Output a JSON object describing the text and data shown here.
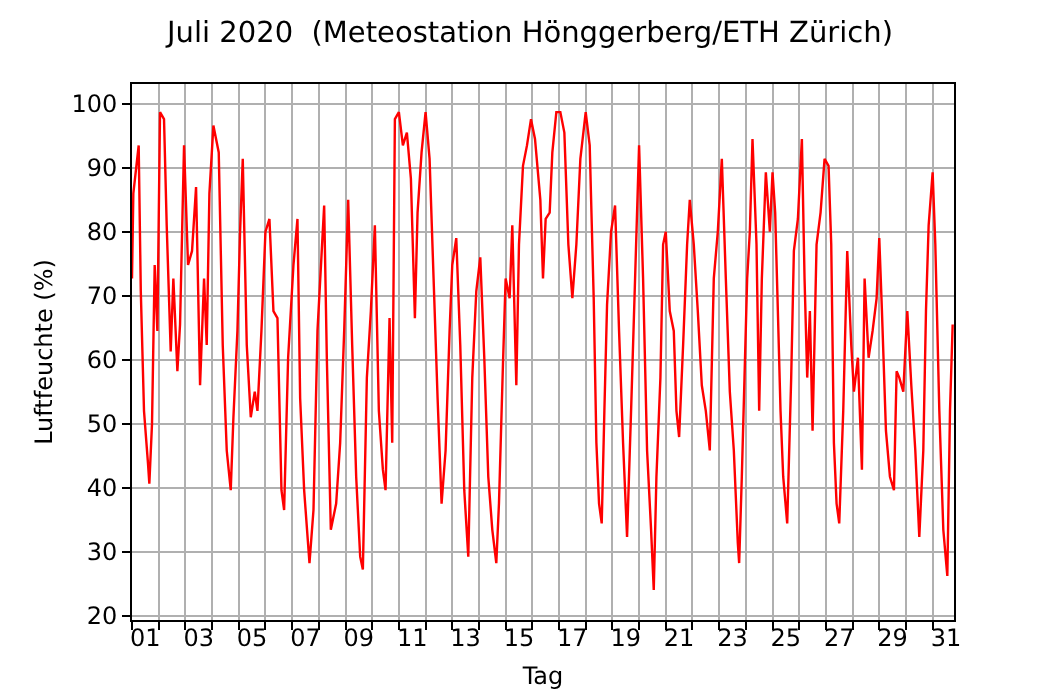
{
  "chart_data": {
    "type": "line",
    "title": "Juli 2020  (Meteostation Hönggerberg/ETH Zürich)",
    "xlabel": "Tag",
    "ylabel": "Luftfeuchte (%)",
    "xlim": [
      1,
      31.8
    ],
    "xticks": [
      {
        "value": 1,
        "label": null
      },
      {
        "value": 2,
        "label": null
      },
      {
        "value": 3,
        "label": null
      },
      {
        "value": 4,
        "label": null
      },
      {
        "value": 5,
        "label": null
      },
      {
        "value": 6,
        "label": null
      },
      {
        "value": 7,
        "label": null
      },
      {
        "value": 8,
        "label": null
      },
      {
        "value": 9,
        "label": null
      },
      {
        "value": 10,
        "label": null
      },
      {
        "value": 11,
        "label": null
      },
      {
        "value": 12,
        "label": null
      },
      {
        "value": 13,
        "label": null
      },
      {
        "value": 14,
        "label": null
      },
      {
        "value": 15,
        "label": null
      },
      {
        "value": 16,
        "label": null
      },
      {
        "value": 17,
        "label": null
      },
      {
        "value": 18,
        "label": null
      },
      {
        "value": 19,
        "label": null
      },
      {
        "value": 20,
        "label": null
      },
      {
        "value": 21,
        "label": null
      },
      {
        "value": 22,
        "label": null
      },
      {
        "value": 23,
        "label": null
      },
      {
        "value": 24,
        "label": null
      },
      {
        "value": 25,
        "label": null
      },
      {
        "value": 26,
        "label": null
      },
      {
        "value": 27,
        "label": null
      },
      {
        "value": 28,
        "label": null
      },
      {
        "value": 29,
        "label": null
      },
      {
        "value": 30,
        "label": null
      },
      {
        "value": 31,
        "label": null
      },
      {
        "value": 1.5,
        "label": "01"
      },
      {
        "value": 3.5,
        "label": "03"
      },
      {
        "value": 5.5,
        "label": "05"
      },
      {
        "value": 7.5,
        "label": "07"
      },
      {
        "value": 9.5,
        "label": "09"
      },
      {
        "value": 11.5,
        "label": "11"
      },
      {
        "value": 13.5,
        "label": "13"
      },
      {
        "value": 15.5,
        "label": "15"
      },
      {
        "value": 17.5,
        "label": "17"
      },
      {
        "value": 19.5,
        "label": "19"
      },
      {
        "value": 21.5,
        "label": "21"
      },
      {
        "value": 23.5,
        "label": "23"
      },
      {
        "value": 25.5,
        "label": "25"
      },
      {
        "value": 27.5,
        "label": "27"
      },
      {
        "value": 29.5,
        "label": "29"
      },
      {
        "value": 31.5,
        "label": "31"
      }
    ],
    "ylim": [
      19.3,
      103.1
    ],
    "yticks": [
      20,
      30,
      40,
      50,
      60,
      70,
      80,
      90,
      100
    ],
    "grid": true,
    "marker": "none",
    "line_style": "solid",
    "series": [
      {
        "color": "#ff0000",
        "x": [
          1.0,
          1.05,
          1.25,
          1.33,
          1.45,
          1.6,
          1.65,
          1.75,
          1.85,
          1.95,
          2.05,
          2.2,
          2.3,
          2.45,
          2.55,
          2.7,
          2.8,
          2.95,
          3.1,
          3.25,
          3.4,
          3.55,
          3.7,
          3.8,
          3.9,
          4.05,
          4.25,
          4.4,
          4.55,
          4.7,
          4.8,
          4.95,
          5.05,
          5.15,
          5.3,
          5.45,
          5.6,
          5.7,
          5.85,
          6.0,
          6.15,
          6.3,
          6.45,
          6.6,
          6.7,
          6.85,
          7.05,
          7.2,
          7.3,
          7.45,
          7.65,
          7.8,
          7.95,
          8.2,
          8.3,
          8.45,
          8.65,
          8.8,
          8.95,
          9.1,
          9.25,
          9.4,
          9.55,
          9.65,
          9.8,
          9.95,
          10.1,
          10.25,
          10.4,
          10.5,
          10.65,
          10.75,
          10.85,
          11.0,
          11.15,
          11.3,
          11.45,
          11.6,
          11.7,
          11.85,
          12.0,
          12.15,
          12.3,
          12.45,
          12.6,
          12.75,
          12.9,
          13.0,
          13.15,
          13.3,
          13.45,
          13.6,
          13.75,
          13.9,
          14.05,
          14.2,
          14.35,
          14.5,
          14.65,
          14.75,
          14.9,
          15.0,
          15.15,
          15.25,
          15.4,
          15.5,
          15.65,
          15.8,
          15.95,
          16.1,
          16.3,
          16.4,
          16.5,
          16.65,
          16.75,
          16.9,
          17.05,
          17.2,
          17.35,
          17.5,
          17.65,
          17.8,
          18.0,
          18.15,
          18.3,
          18.4,
          18.5,
          18.6,
          18.7,
          18.8,
          18.95,
          19.1,
          19.25,
          19.4,
          19.55,
          19.7,
          19.85,
          20.0,
          20.15,
          20.3,
          20.45,
          20.55,
          20.65,
          20.8,
          20.9,
          21.0,
          21.15,
          21.3,
          21.4,
          21.5,
          21.65,
          21.8,
          21.9,
          22.05,
          22.2,
          22.35,
          22.5,
          22.65,
          22.8,
          22.95,
          23.1,
          23.25,
          23.4,
          23.55,
          23.7,
          23.75,
          23.85,
          23.95,
          24.05,
          24.15,
          24.25,
          24.4,
          24.5,
          24.6,
          24.75,
          24.9,
          25.0,
          25.1,
          25.2,
          25.3,
          25.4,
          25.55,
          25.7,
          25.8,
          25.95,
          26.1,
          26.2,
          26.3,
          26.4,
          26.5,
          26.65,
          26.8,
          26.95,
          27.1,
          27.2,
          27.3,
          27.4,
          27.5,
          27.65,
          27.8,
          27.95,
          28.05,
          28.2,
          28.35,
          28.45,
          28.6,
          28.75,
          28.9,
          29.0,
          29.1,
          29.25,
          29.4,
          29.55,
          29.65,
          29.75,
          29.9,
          30.05,
          30.2,
          30.35,
          30.5,
          30.65,
          30.75,
          30.85,
          31.0,
          31.1,
          31.25,
          31.4,
          31.55,
          31.65,
          31.75
        ],
        "values": [
          72.7,
          86,
          93.5,
          70.7,
          52,
          43.7,
          40.6,
          50,
          74.8,
          64.5,
          98.7,
          97.6,
          81,
          61.3,
          72.7,
          58.2,
          65.5,
          93.5,
          74.8,
          77,
          87,
          56,
          72.7,
          62.3,
          86,
          96.6,
          92.4,
          62.3,
          45.8,
          39.6,
          51,
          64.5,
          80,
          91.4,
          62.3,
          51,
          55,
          52,
          64.5,
          80,
          82,
          67.6,
          66.5,
          39.6,
          36.5,
          60.3,
          74.8,
          82,
          54,
          39.6,
          28.2,
          36.5,
          64.5,
          84.1,
          60.3,
          33.4,
          37.5,
          47,
          64.5,
          85,
          62.3,
          41.7,
          29.2,
          27.2,
          57.2,
          67.6,
          81,
          52,
          42.8,
          39.6,
          66.5,
          47,
          97.6,
          98.7,
          93.5,
          95.5,
          88.3,
          66.5,
          83,
          92.4,
          98.7,
          91.4,
          72.7,
          54,
          37.5,
          45.8,
          64.5,
          74.8,
          79,
          62.3,
          39.6,
          29.2,
          57.2,
          70.7,
          76,
          60.3,
          41.7,
          33.4,
          28.2,
          37.5,
          59.3,
          72.7,
          69.6,
          81,
          56,
          78,
          90.3,
          93.5,
          97.6,
          94.5,
          85,
          72.7,
          82,
          83,
          92.4,
          98.7,
          98.7,
          95.5,
          78,
          69.6,
          78,
          91.4,
          98.7,
          93.5,
          69.6,
          47,
          37.5,
          34.4,
          52,
          68.6,
          80,
          84.1,
          64.5,
          47,
          32.3,
          52,
          72.7,
          93.5,
          72.7,
          45.8,
          33.4,
          24,
          41.7,
          57.2,
          78,
          80,
          67.6,
          64.5,
          52,
          47.9,
          62.3,
          78,
          85,
          78,
          67.6,
          56,
          52,
          45.8,
          72.7,
          80,
          91.4,
          72.7,
          55,
          45.8,
          31.3,
          28.2,
          41.7,
          57.2,
          72.7,
          80,
          94.5,
          78,
          52,
          72.7,
          89.3,
          80,
          89.3,
          83,
          67.6,
          52,
          41.7,
          34.4,
          57.2,
          77,
          82,
          94.5,
          72.7,
          57.2,
          67.6,
          48.9,
          78,
          83,
          91.4,
          90.3,
          78,
          47,
          37.5,
          34.4,
          52,
          77,
          62.3,
          55,
          60.3,
          42.8,
          72.7,
          60.3,
          64.5,
          69.6,
          79,
          67.6,
          48.9,
          41.7,
          39.6,
          58.2,
          57.2,
          55,
          67.6,
          56,
          45.8,
          32.3,
          45.8,
          67.6,
          81,
          89.3,
          78,
          52,
          33.4,
          26.2,
          52,
          65.5
        ]
      }
    ]
  }
}
